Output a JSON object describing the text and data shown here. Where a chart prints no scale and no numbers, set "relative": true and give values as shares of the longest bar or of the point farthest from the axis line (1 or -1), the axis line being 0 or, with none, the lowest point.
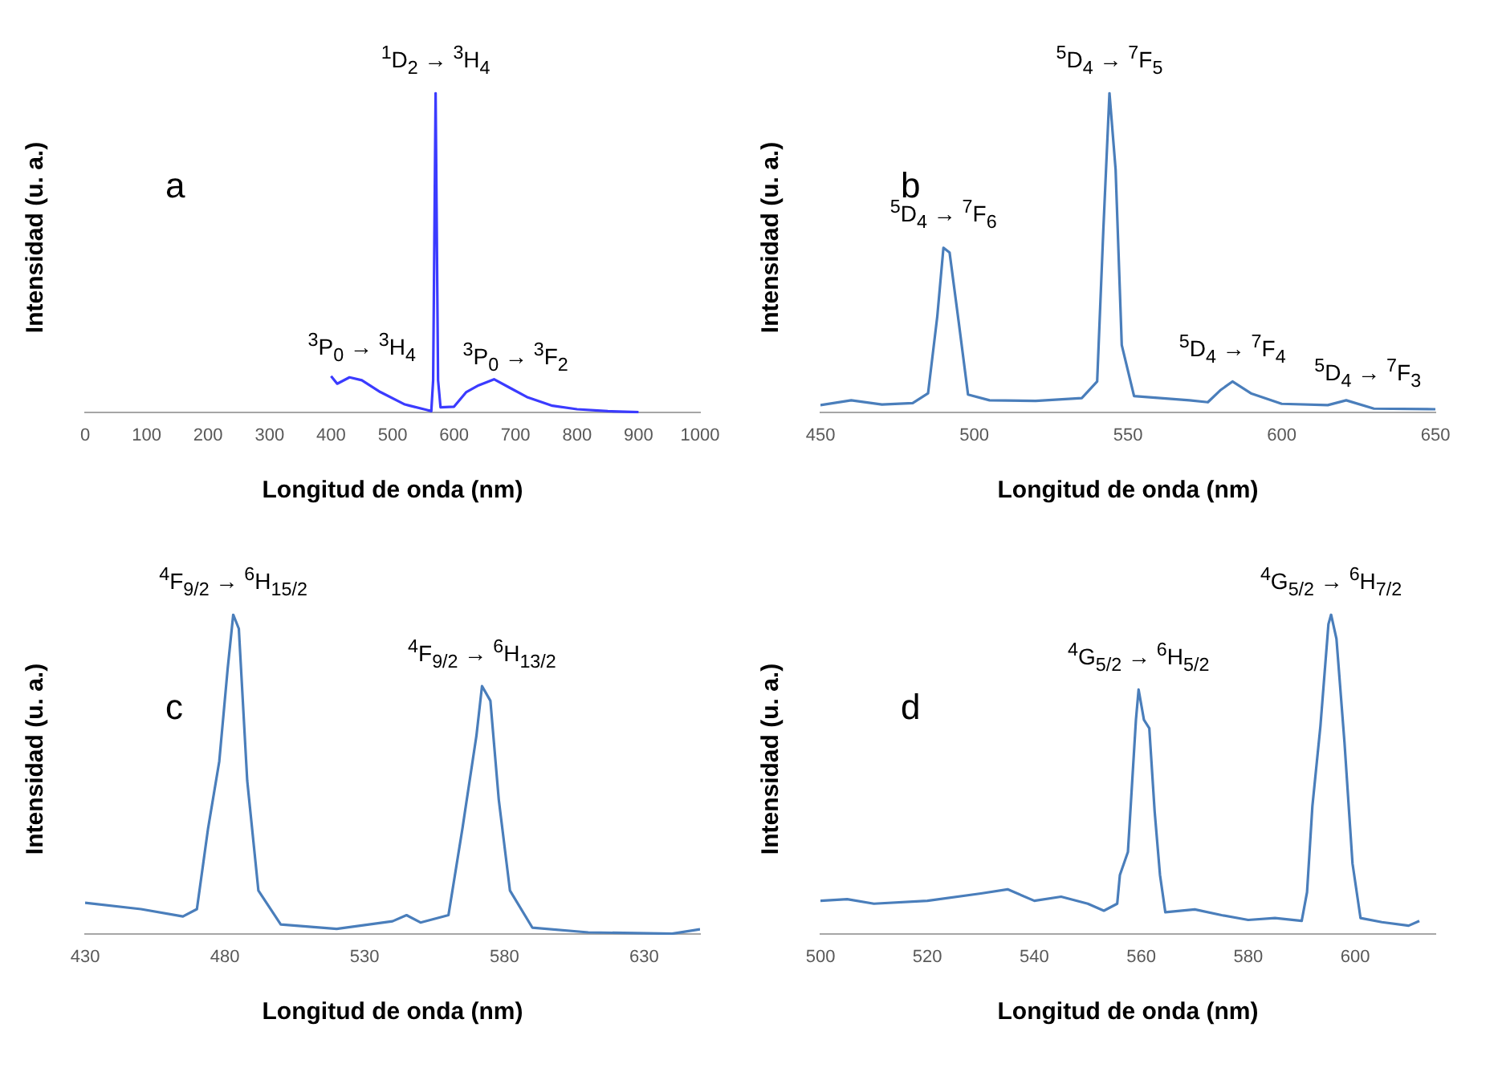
{
  "chart_data": [
    {
      "type": "line",
      "relative": true,
      "xlabel": "Longitud de onda (nm)",
      "ylabel": "Intensidad (u. a.)",
      "xlim": [
        0,
        1000
      ],
      "xticks": [
        0,
        100,
        200,
        300,
        400,
        500,
        600,
        700,
        800,
        900,
        1000
      ],
      "grid": false,
      "legend": false,
      "marker": "none",
      "line_style": "solid",
      "x": [
        400,
        410,
        430,
        450,
        480,
        520,
        555,
        563,
        566,
        570,
        574,
        578,
        600,
        620,
        640,
        665,
        690,
        720,
        760,
        800,
        850,
        900
      ],
      "series": [
        {
          "color": "#3b3bff",
          "values": [
            0.113,
            0.089,
            0.109,
            0.1,
            0.063,
            0.024,
            0.007,
            0.003,
            0.1,
            1,
            0.1,
            0.015,
            0.017,
            0.063,
            0.084,
            0.103,
            0.077,
            0.046,
            0.02,
            0.009,
            0.003,
            0
          ]
        }
      ],
      "annotations": [
        "a",
        {
          "text": "$^{1}$D$_{2}$ → $^{3}$H$_{4}$",
          "x": 570,
          "y": 1
        },
        {
          "text": "$^{3}$P$_{0}$ → $^{3}$H$_{4}$",
          "x": 450,
          "y": 0.1
        },
        {
          "text": "$^{3}$P$_{0}$ → $^{3}$F$_{2}$",
          "x": 700,
          "y": 0.07
        }
      ]
    },
    {
      "type": "line",
      "relative": true,
      "xlabel": "Longitud de onda (nm)",
      "ylabel": "Intensidad (u. a.)",
      "xlim": [
        450,
        650
      ],
      "xticks": [
        450,
        500,
        550,
        600,
        650
      ],
      "grid": false,
      "legend": false,
      "marker": "none",
      "line_style": "solid",
      "x": [
        450,
        460,
        470,
        480,
        485,
        488,
        490,
        492,
        495,
        498,
        505,
        520,
        535,
        540,
        542,
        544,
        546,
        548,
        552,
        570,
        576,
        580,
        584,
        590,
        600,
        615,
        621,
        630,
        650
      ],
      "series": [
        {
          "color": "#4a7ebb",
          "values": [
            0.022,
            0.037,
            0.024,
            0.028,
            0.059,
            0.3,
            0.515,
            0.5,
            0.28,
            0.055,
            0.037,
            0.035,
            0.044,
            0.096,
            0.57,
            1,
            0.76,
            0.21,
            0.05,
            0.037,
            0.031,
            0.068,
            0.096,
            0.059,
            0.026,
            0.022,
            0.037,
            0.011,
            0.009
          ]
        }
      ],
      "annotations": [
        "b",
        {
          "text": "$^{5}$D$_{4}$ → $^{7}$F$_{6}$",
          "x": 490,
          "y": 0.515
        },
        {
          "text": "$^{5}$D$_{4}$ → $^{7}$F$_{5}$",
          "x": 544,
          "y": 1
        },
        {
          "text": "$^{5}$D$_{4}$ → $^{7}$F$_{4}$",
          "x": 584,
          "y": 0.096
        },
        {
          "text": "$^{5}$D$_{4}$ → $^{7}$F$_{3}$",
          "x": 628,
          "y": 0.02
        }
      ]
    },
    {
      "type": "line",
      "relative": true,
      "xlabel": "Longitud de onda (nm)",
      "ylabel": "Intensidad (u. a.)",
      "xlim": [
        430,
        650
      ],
      "xticks": [
        430,
        480,
        530,
        580,
        630
      ],
      "grid": false,
      "legend": false,
      "marker": "none",
      "line_style": "solid",
      "x": [
        430,
        450,
        465,
        470,
        474,
        478,
        481,
        483,
        485,
        488,
        492,
        500,
        520,
        540,
        545,
        550,
        560,
        565,
        570,
        572,
        575,
        578,
        582,
        590,
        610,
        640,
        650
      ],
      "series": [
        {
          "color": "#4a7ebb",
          "values": [
            0.097,
            0.077,
            0.054,
            0.077,
            0.33,
            0.54,
            0.83,
            1,
            0.956,
            0.48,
            0.135,
            0.029,
            0.015,
            0.039,
            0.058,
            0.035,
            0.058,
            0.33,
            0.62,
            0.776,
            0.73,
            0.42,
            0.135,
            0.019,
            0.004,
            0,
            0.014
          ]
        }
      ],
      "annotations": [
        "c",
        {
          "text": "$^{4}$F$_{9/2}$ → $^{6}$H$_{15/2}$",
          "x": 483,
          "y": 1
        },
        {
          "text": "$^{4}$F$_{9/2}$ → $^{6}$H$_{13/2}$",
          "x": 572,
          "y": 0.776
        }
      ]
    },
    {
      "type": "line",
      "relative": true,
      "xlabel": "Longitud de onda (nm)",
      "ylabel": "Intensidad (u. a.)",
      "xlim": [
        500,
        615
      ],
      "xticks": [
        500,
        520,
        540,
        560,
        580,
        600
      ],
      "grid": false,
      "legend": false,
      "marker": "none",
      "line_style": "solid",
      "x": [
        500,
        505,
        510,
        520,
        530,
        535,
        540,
        545,
        550,
        553,
        555.5,
        556,
        557.5,
        559,
        559.5,
        560.5,
        561.5,
        562.5,
        563.5,
        564.5,
        570,
        575,
        580,
        585,
        590,
        591,
        592,
        593.5,
        595,
        595.5,
        596.5,
        598,
        599.5,
        601,
        605,
        610,
        612
      ],
      "series": [
        {
          "color": "#4a7ebb",
          "values": [
            0.103,
            0.108,
            0.094,
            0.103,
            0.126,
            0.139,
            0.103,
            0.116,
            0.094,
            0.072,
            0.094,
            0.184,
            0.256,
            0.67,
            0.765,
            0.67,
            0.644,
            0.383,
            0.184,
            0.067,
            0.076,
            0.058,
            0.043,
            0.049,
            0.04,
            0.13,
            0.4,
            0.65,
            0.97,
            1,
            0.924,
            0.6,
            0.22,
            0.049,
            0.036,
            0.025,
            0.04
          ]
        }
      ],
      "annotations": [
        "d",
        {
          "text": "$^{4}$G$_{5/2}$ → $^{6}$H$_{5/2}$",
          "x": 559.5,
          "y": 0.765
        },
        {
          "text": "$^{4}$G$_{5/2}$ → $^{6}$H$_{7/2}$",
          "x": 595.5,
          "y": 1
        }
      ]
    }
  ]
}
